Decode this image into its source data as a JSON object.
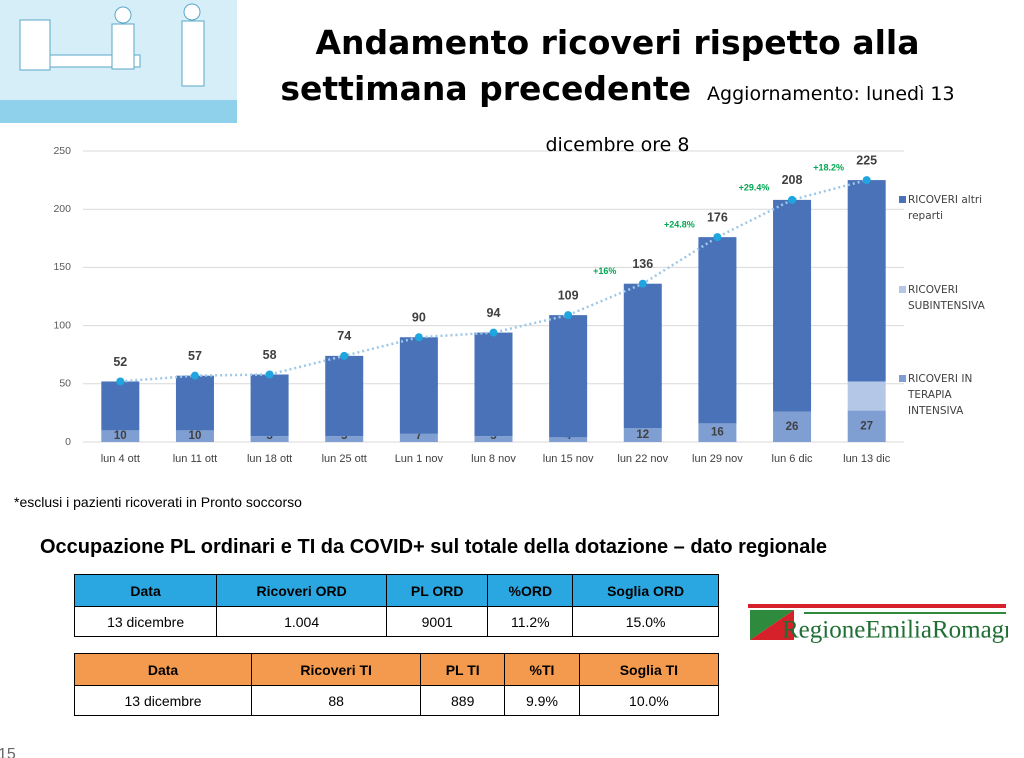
{
  "header": {
    "title": "Andamento ricoveri rispetto alla settimana precedente",
    "subtitle": "Aggiornamento: lunedì 13 dicembre ore 8"
  },
  "chart_data": {
    "type": "bar",
    "stacked": true,
    "categories": [
      "lun 4 ott",
      "lun 11 ott",
      "lun 18 ott",
      "lun 25 ott",
      "Lun 1 nov",
      "lun 8 nov",
      "lun 15 nov",
      "lun 22 nov",
      "lun 29 nov",
      "lun 6 dic",
      "lun 13 dic"
    ],
    "series": [
      {
        "name": "RICOVERI IN TERAPIA INTENSIVA",
        "color": "#7f9fd3",
        "values": [
          10,
          10,
          5,
          5,
          7,
          5,
          4,
          12,
          16,
          26,
          27
        ]
      },
      {
        "name": "RICOVERI SUBINTENSIVA",
        "color": "#b4c7e7",
        "values": [
          0,
          0,
          0,
          0,
          0,
          0,
          0,
          0,
          0,
          0,
          25
        ]
      },
      {
        "name": "RICOVERI altri reparti",
        "color": "#4a72b8",
        "values": [
          42,
          47,
          53,
          69,
          83,
          89,
          105,
          124,
          160,
          182,
          173
        ]
      }
    ],
    "totals": {
      "color": "#9dc8e8",
      "point_color": "#1fa5e0",
      "values": [
        52,
        57,
        58,
        74,
        90,
        94,
        109,
        136,
        176,
        208,
        225
      ]
    },
    "growth": {
      "color": "#00a651",
      "values": [
        null,
        null,
        null,
        null,
        null,
        null,
        null,
        16,
        24.8,
        29.4,
        18.2
      ],
      "value_labels": [
        null,
        null,
        null,
        null,
        null,
        null,
        null,
        "+16%",
        "+24.8%",
        "+29.4%",
        "+18.2%"
      ]
    },
    "ylim": [
      0,
      250
    ],
    "yticks": [
      0,
      50,
      100,
      150,
      200,
      250
    ],
    "grid": true
  },
  "footnote": "*esclusi i pazienti ricoverati in Pronto soccorso",
  "section_title": "Occupazione PL ordinari e TI da COVID+ sul totale della dotazione – dato regionale",
  "tables": [
    {
      "color": "#2aa7e1",
      "header": [
        "Data",
        "Ricoveri ORD",
        "PL ORD",
        "%ORD",
        "Soglia ORD"
      ],
      "rows": [
        [
          "13 dicembre",
          "1.004",
          "9001",
          "11.2%",
          "15.0%"
        ]
      ]
    },
    {
      "color": "#f39a4e",
      "header": [
        "Data",
        "Ricoveri TI",
        "PL TI",
        "%TI",
        "Soglia TI"
      ],
      "rows": [
        [
          "13 dicembre",
          "88",
          "889",
          "9.9%",
          "10.0%"
        ]
      ]
    }
  ],
  "logo": "RegioneEmiliaRomagna",
  "page_number": "15"
}
